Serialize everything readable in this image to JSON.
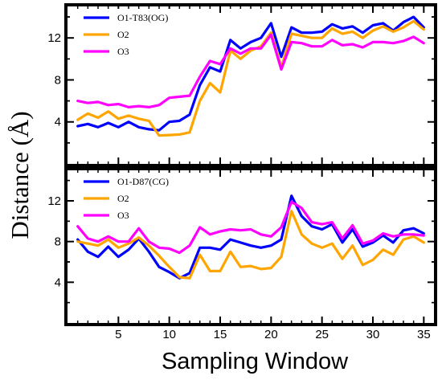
{
  "chart_data": [
    {
      "type": "line",
      "panel": "top",
      "ylabel": "Distance (Å)",
      "xlabel": "Sampling Window",
      "xlim": [
        0,
        36
      ],
      "ylim": [
        0,
        15
      ],
      "xticks": [
        5,
        10,
        15,
        20,
        25,
        30,
        35
      ],
      "yticks": [
        4,
        8,
        12
      ],
      "grid": false,
      "legend": "top-left",
      "x": [
        1,
        2,
        3,
        4,
        5,
        6,
        7,
        8,
        9,
        10,
        11,
        12,
        13,
        14,
        15,
        16,
        17,
        18,
        19,
        20,
        21,
        22,
        23,
        24,
        25,
        26,
        27,
        28,
        29,
        30,
        31,
        32,
        33,
        34,
        35
      ],
      "series": [
        {
          "name": "O1-T83(OG)",
          "color": "#0000ff",
          "values": [
            3.6,
            3.8,
            3.5,
            3.9,
            3.5,
            4.0,
            3.5,
            3.3,
            3.2,
            4.0,
            4.1,
            4.7,
            7.5,
            9.2,
            8.8,
            11.8,
            11.0,
            11.6,
            12.0,
            13.4,
            10.2,
            13.0,
            12.5,
            12.5,
            12.6,
            13.3,
            12.9,
            13.1,
            12.5,
            13.2,
            13.4,
            12.7,
            13.5,
            14.0,
            13.0
          ]
        },
        {
          "name": "O2",
          "color": "#ffa500",
          "values": [
            4.2,
            4.8,
            4.4,
            5.0,
            4.3,
            4.6,
            4.3,
            4.1,
            2.7,
            2.75,
            2.8,
            3.0,
            6.0,
            7.7,
            6.8,
            10.8,
            10.0,
            10.8,
            11.2,
            12.5,
            9.2,
            12.4,
            12.2,
            12.0,
            12.0,
            12.9,
            12.4,
            12.6,
            12.0,
            12.7,
            13.1,
            12.6,
            13.0,
            13.6,
            12.8
          ]
        },
        {
          "name": "O3",
          "color": "#ff00ff",
          "values": [
            6.0,
            5.8,
            5.9,
            5.6,
            5.7,
            5.4,
            5.5,
            5.4,
            5.6,
            6.3,
            6.4,
            6.5,
            8.3,
            9.8,
            9.5,
            11.0,
            10.5,
            11.0,
            11.0,
            12.3,
            9.0,
            11.6,
            11.5,
            11.2,
            11.2,
            11.8,
            11.3,
            11.4,
            11.1,
            11.6,
            11.6,
            11.5,
            11.7,
            12.1,
            11.5
          ]
        }
      ]
    },
    {
      "type": "line",
      "panel": "bottom",
      "xlim": [
        0,
        36
      ],
      "ylim": [
        0,
        15
      ],
      "xticks": [
        5,
        10,
        15,
        20,
        25,
        30,
        35
      ],
      "yticks": [
        4,
        8,
        12
      ],
      "grid": false,
      "legend": "top-left",
      "x": [
        1,
        2,
        3,
        4,
        5,
        6,
        7,
        8,
        9,
        10,
        11,
        12,
        13,
        14,
        15,
        16,
        17,
        18,
        19,
        20,
        21,
        22,
        23,
        24,
        25,
        26,
        27,
        28,
        29,
        30,
        31,
        32,
        33,
        34,
        35
      ],
      "series": [
        {
          "name": "O1-D87(CG)",
          "color": "#0000ff",
          "values": [
            8.2,
            7.0,
            6.5,
            7.5,
            6.5,
            7.2,
            8.3,
            7.0,
            5.5,
            5.0,
            4.4,
            4.9,
            7.4,
            7.4,
            7.2,
            8.2,
            7.9,
            7.6,
            7.4,
            7.6,
            8.2,
            12.5,
            10.5,
            9.5,
            9.2,
            9.7,
            7.9,
            9.2,
            7.5,
            7.9,
            8.6,
            7.9,
            9.1,
            9.3,
            8.8
          ]
        },
        {
          "name": "O2",
          "color": "#ffa500",
          "values": [
            8.0,
            7.8,
            7.6,
            8.2,
            7.4,
            7.8,
            8.4,
            7.6,
            6.6,
            5.5,
            4.5,
            4.4,
            6.7,
            5.1,
            5.1,
            7.0,
            5.5,
            5.6,
            5.3,
            5.4,
            6.5,
            11.0,
            8.7,
            7.8,
            7.4,
            7.8,
            6.3,
            7.6,
            5.7,
            6.2,
            7.2,
            6.7,
            8.2,
            8.5,
            7.9
          ]
        },
        {
          "name": "O3",
          "color": "#ff00ff",
          "values": [
            9.5,
            8.3,
            8.0,
            8.5,
            8.0,
            8.0,
            9.3,
            8.0,
            7.4,
            7.3,
            6.9,
            7.6,
            9.4,
            8.7,
            9.0,
            9.2,
            9.1,
            9.2,
            8.7,
            8.5,
            9.4,
            11.9,
            11.3,
            9.9,
            9.7,
            9.9,
            8.3,
            9.6,
            7.8,
            8.1,
            8.8,
            8.5,
            8.7,
            8.7,
            8.6
          ]
        }
      ]
    }
  ]
}
